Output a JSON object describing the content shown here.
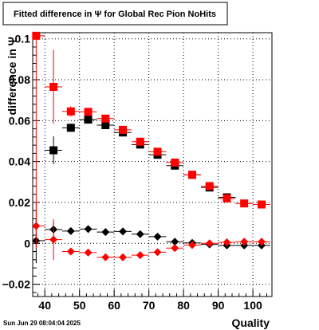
{
  "chart_data": {
    "type": "scatter",
    "title": "Fitted difference in  Ψ  for Global Rec Pion NoHits",
    "xlabel": "Quality",
    "ylabel": "difference in  Ψ",
    "xlim": [
      36.5,
      105.5
    ],
    "ylim": [
      -0.026,
      0.103
    ],
    "grid": true,
    "x_ticks": [
      40,
      50,
      60,
      70,
      80,
      90,
      100
    ],
    "x_tick_labels": [
      "40",
      "50",
      "60",
      "70",
      "80",
      "90",
      "100"
    ],
    "y_ticks": [
      -0.02,
      0,
      0.02,
      0.04,
      0.06,
      0.08,
      0.1
    ],
    "y_tick_labels": [
      "−0.02",
      "0",
      "0.02",
      "0.04",
      "0.06",
      "0.08",
      "0.1"
    ],
    "series": [
      {
        "marker": "square",
        "color": "#000000",
        "x": [
          42.5,
          47.5,
          52.5,
          57.5,
          62.5,
          67.5,
          72.5,
          77.5,
          82.5,
          87.5,
          92.5
        ],
        "y": [
          0.0455,
          0.0565,
          0.0605,
          0.0578,
          0.0542,
          0.0483,
          0.0433,
          0.038,
          0.0335,
          0.0273,
          0.0225
        ],
        "err": [
          0.0068,
          0.002,
          0.0013,
          0.0008,
          0.0008,
          0.0008,
          0.0008,
          0.0008,
          0.0008,
          0.0008,
          0.0008
        ]
      },
      {
        "marker": "square",
        "color": "#ff0000",
        "x": [
          37.5,
          42.5,
          47.5,
          52.5,
          57.5,
          62.5,
          67.5,
          72.5,
          77.5,
          82.5,
          87.5,
          92.5,
          97.5,
          102.5
        ],
        "y": [
          0.1015,
          0.0765,
          0.0645,
          0.0643,
          0.061,
          0.0555,
          0.0497,
          0.0448,
          0.0395,
          0.0335,
          0.028,
          0.022,
          0.0195,
          0.019
        ],
        "err": [
          0.094,
          0.018,
          0.0025,
          0.0012,
          0.001,
          0.0008,
          0.0008,
          0.0008,
          0.0008,
          0.0008,
          0.0008,
          0.0008,
          0.0008,
          0.0008
        ]
      },
      {
        "marker": "diamond",
        "color": "#000000",
        "x": [
          37.5,
          42.5,
          47.5,
          52.5,
          57.5,
          62.5,
          67.5,
          72.5,
          77.5,
          82.5,
          87.5,
          92.5,
          97.5,
          102.5
        ],
        "y": [
          0.0013,
          0.0068,
          0.006,
          0.007,
          0.0055,
          0.0058,
          0.0045,
          0.0033,
          0.0008,
          0.0002,
          -0.0005,
          -0.001,
          -0.001,
          -0.001
        ],
        "err": [
          0.011,
          0.0035,
          0.0008,
          0.0006,
          0.0005,
          0.0005,
          0.0005,
          0.0005,
          0.0005,
          0.0005,
          0.0005,
          0.0005,
          0.0005,
          0.0005
        ]
      },
      {
        "marker": "diamond",
        "color": "#ff0000",
        "x": [
          37.5,
          42.5,
          47.5,
          52.5,
          57.5,
          62.5,
          67.5,
          72.5,
          77.5,
          82.5,
          87.5,
          92.5,
          97.5,
          102.5
        ],
        "y": [
          0.0085,
          0.0018,
          -0.004,
          -0.0045,
          -0.0068,
          -0.0068,
          -0.0058,
          -0.0043,
          -0.0023,
          -0.0008,
          0.0,
          0.0005,
          0.0008,
          0.0008
        ],
        "err": [
          0.011,
          0.01,
          0.0015,
          0.0008,
          0.0006,
          0.0005,
          0.0005,
          0.0005,
          0.0005,
          0.0005,
          0.0005,
          0.0005,
          0.0005,
          0.0005
        ]
      }
    ]
  },
  "footer": {
    "timestamp": "Sun Jun 29 08:04:04 2025"
  }
}
